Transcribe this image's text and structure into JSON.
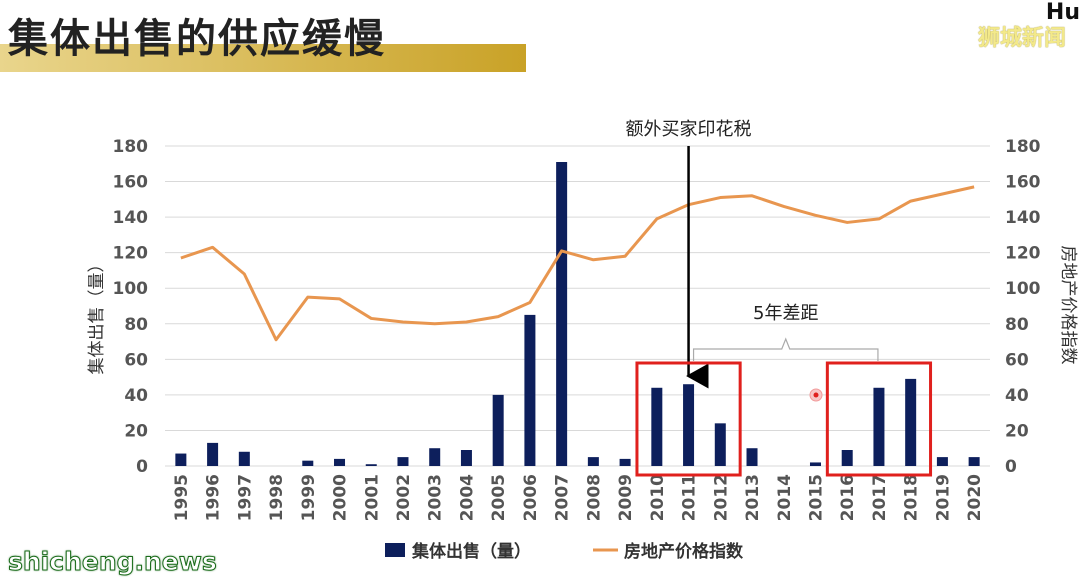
{
  "page": {
    "title": "集体出售的供应缓慢",
    "brand": "狮城新闻",
    "brand_mark": "Hu",
    "watermark": "shicheng.news"
  },
  "chart_data": {
    "type": "bar",
    "categories": [
      "1995",
      "1996",
      "1997",
      "1998",
      "1999",
      "2000",
      "2001",
      "2002",
      "2003",
      "2004",
      "2005",
      "2006",
      "2007",
      "2008",
      "2009",
      "2010",
      "2011",
      "2012",
      "2013",
      "2014",
      "2015",
      "2016",
      "2017",
      "2018",
      "2019",
      "2020"
    ],
    "series": [
      {
        "name": "集体出售（量）",
        "type": "bar",
        "axis": "left",
        "color": "#0d1f5c",
        "values": [
          7,
          13,
          8,
          0,
          3,
          4,
          1,
          5,
          10,
          9,
          40,
          85,
          171,
          5,
          4,
          44,
          46,
          24,
          10,
          0,
          2,
          9,
          44,
          49,
          5,
          5
        ]
      },
      {
        "name": "房地产价格指数",
        "type": "line",
        "axis": "right",
        "color": "#e8964f",
        "values": [
          117,
          123,
          108,
          71,
          95,
          94,
          83,
          81,
          80,
          81,
          84,
          92,
          121,
          116,
          118,
          139,
          147,
          151,
          152,
          146,
          141,
          137,
          139,
          149,
          153,
          157
        ]
      }
    ],
    "ylabel": "集体出售（量）",
    "y2label": "房地产价格指数",
    "ylim": [
      0,
      180
    ],
    "y2lim": [
      0,
      180
    ],
    "yticks": [
      0,
      20,
      40,
      60,
      80,
      100,
      120,
      140,
      160,
      180
    ],
    "grid": true,
    "legend": "bottom",
    "annotations": {
      "arrow_label": "额外买家印花税",
      "arrow_category": "2011",
      "gap_label": "5年差距",
      "box1": [
        "2010",
        "2012"
      ],
      "box2": [
        "2016",
        "2018"
      ]
    }
  }
}
